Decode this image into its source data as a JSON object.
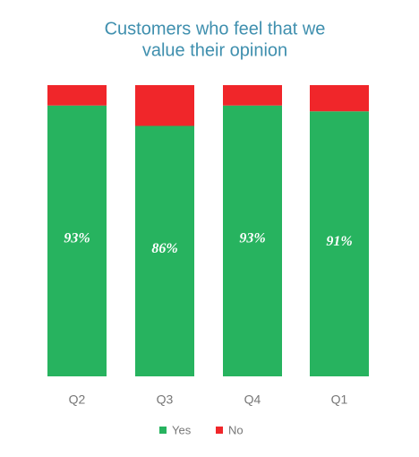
{
  "chart_data": {
    "type": "stacked_bar",
    "title": [
      "Customers who feel that we",
      "value their opinion"
    ],
    "categories": [
      "Q2",
      "Q3",
      "Q4",
      "Q1"
    ],
    "series": [
      {
        "name": "Yes",
        "color": "#27b35f",
        "values": [
          93,
          86,
          93,
          91
        ],
        "value_labels": [
          "93%",
          "86%",
          "93%",
          "91%"
        ]
      },
      {
        "name": "No",
        "color": "#f0262a",
        "values": [
          7,
          14,
          7,
          9
        ]
      }
    ],
    "legend": "bottom"
  }
}
